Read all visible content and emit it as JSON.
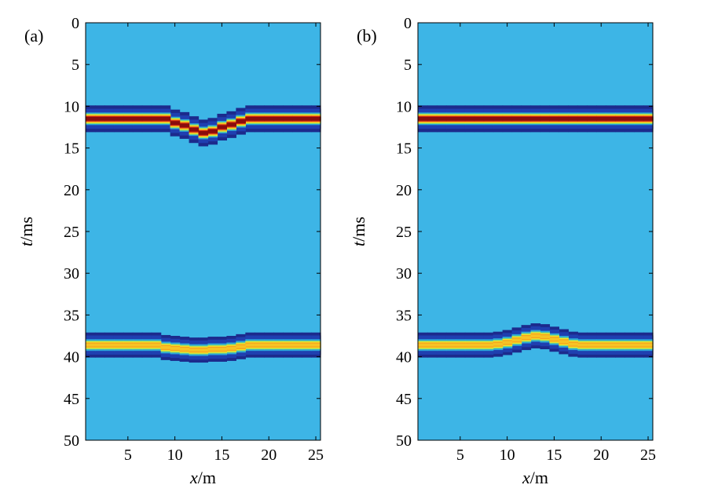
{
  "chart_data": [
    {
      "type": "heatmap",
      "panel_label": "(a)",
      "xlabel": "x/m",
      "ylabel": "t/ms",
      "xlim": [
        0.5,
        25.5
      ],
      "ylim": [
        50,
        0
      ],
      "xticks": [
        5,
        10,
        15,
        20,
        25
      ],
      "yticks": [
        0,
        5,
        10,
        15,
        20,
        25,
        30,
        35,
        40,
        45,
        50
      ],
      "background_color": "#3db5e6",
      "events": [
        {
          "polarity": "strong",
          "amplitude_color": "#b41414",
          "x": [
            1,
            8,
            9,
            10,
            11,
            12,
            13,
            14,
            15,
            16,
            17,
            18,
            25
          ],
          "t": [
            11.5,
            11.5,
            11.5,
            12.0,
            12.3,
            12.8,
            13.2,
            13.0,
            12.5,
            12.2,
            11.8,
            11.5,
            11.5
          ]
        },
        {
          "polarity": "weak",
          "amplitude_color": "#f08c1e",
          "x": [
            1,
            8,
            9,
            10,
            11,
            12,
            13,
            14,
            15,
            16,
            17,
            18,
            25
          ],
          "t": [
            38.6,
            38.6,
            38.9,
            39.0,
            39.1,
            39.2,
            39.2,
            39.1,
            39.1,
            39.0,
            38.8,
            38.6,
            38.6
          ]
        }
      ]
    },
    {
      "type": "heatmap",
      "panel_label": "(b)",
      "xlabel": "x/m",
      "ylabel": "t/ms",
      "xlim": [
        0.5,
        25.5
      ],
      "ylim": [
        50,
        0
      ],
      "xticks": [
        5,
        10,
        15,
        20,
        25
      ],
      "yticks": [
        0,
        5,
        10,
        15,
        20,
        25,
        30,
        35,
        40,
        45,
        50
      ],
      "background_color": "#3db5e6",
      "events": [
        {
          "polarity": "strong",
          "amplitude_color": "#b41414",
          "x": [
            1,
            25
          ],
          "t": [
            11.5,
            11.5
          ]
        },
        {
          "polarity": "weak",
          "amplitude_color": "#f08c1e",
          "x": [
            1,
            8,
            9,
            10,
            11,
            12,
            13,
            14,
            15,
            16,
            17,
            18,
            25
          ],
          "t": [
            38.6,
            38.6,
            38.5,
            38.3,
            38.0,
            37.7,
            37.5,
            37.6,
            37.9,
            38.2,
            38.5,
            38.6,
            38.6
          ]
        }
      ]
    }
  ]
}
